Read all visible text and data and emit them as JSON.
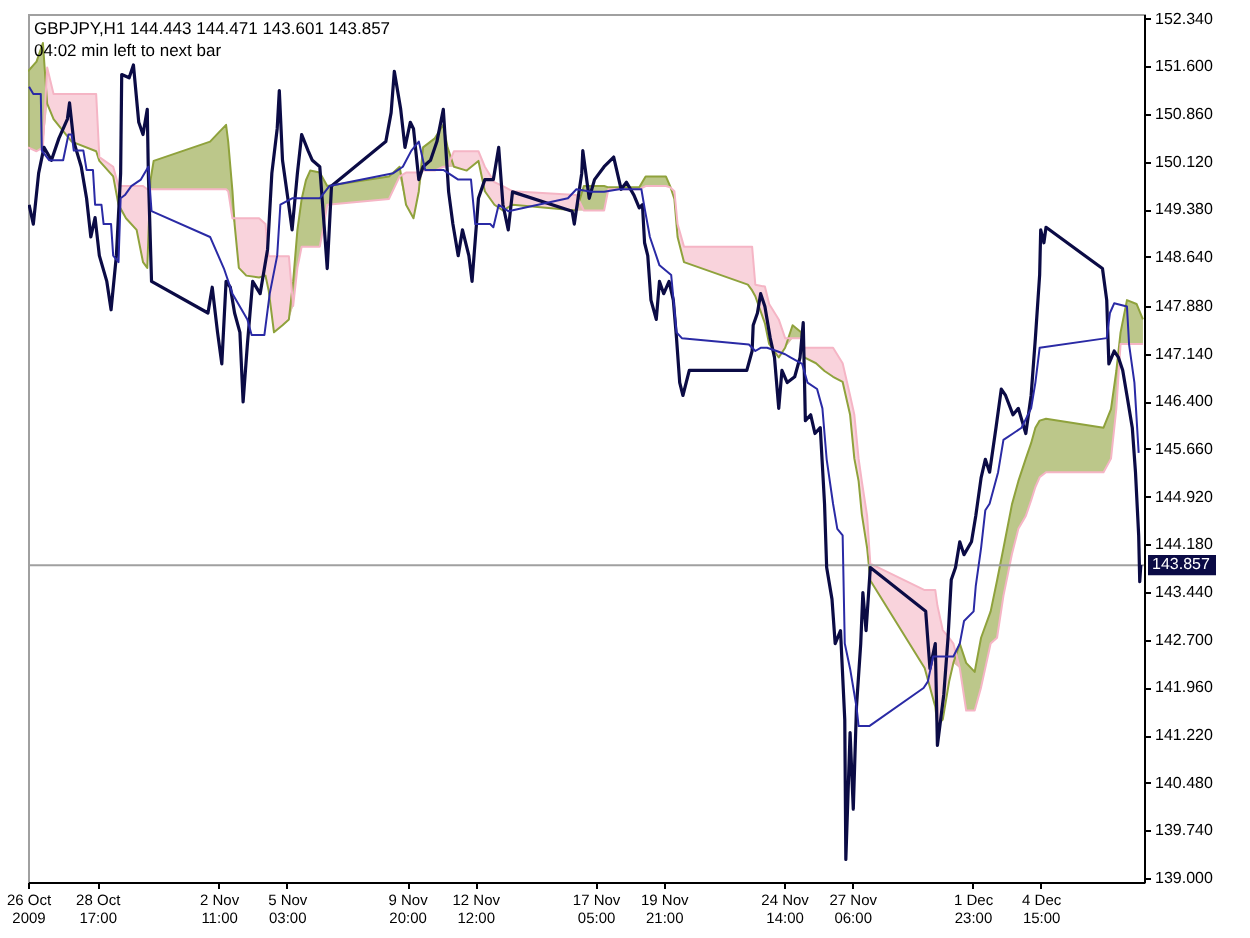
{
  "chart_data": {
    "type": "line",
    "title": "GBPJPY,H1  144.443 144.471 143.601 143.857",
    "subtitle": "04:02 min left to next bar",
    "xlim": [
      "2009-10-26T00:00",
      "2009-12-08T16:00"
    ],
    "xticks": [
      {
        "value": "2009-10-26T00:00",
        "label": "26 Oct 2009"
      },
      {
        "value": "2009-10-28T17:00",
        "label": "28 Oct 17:00"
      },
      {
        "value": "2009-11-02T11:00",
        "label": "2 Nov 11:00"
      },
      {
        "value": "2009-11-05T03:00",
        "label": "5 Nov 03:00"
      },
      {
        "value": "2009-11-09T20:00",
        "label": "9 Nov 20:00"
      },
      {
        "value": "2009-11-12T12:00",
        "label": "12 Nov 12:00"
      },
      {
        "value": "2009-11-17T05:00",
        "label": "17 Nov 05:00"
      },
      {
        "value": "2009-11-19T21:00",
        "label": "19 Nov 21:00"
      },
      {
        "value": "2009-11-24T14:00",
        "label": "24 Nov 14:00"
      },
      {
        "value": "2009-11-27T06:00",
        "label": "27 Nov 06:00"
      },
      {
        "value": "2009-12-01T23:00",
        "label": "1 Dec 23:00"
      },
      {
        "value": "2009-12-04T15:00",
        "label": "4 Dec 15:00"
      }
    ],
    "ylim": [
      138.94,
      152.41
    ],
    "yticks": [
      {
        "value": 152.34,
        "label": "152.340"
      },
      {
        "value": 151.6,
        "label": "151.600"
      },
      {
        "value": 150.86,
        "label": "150.860"
      },
      {
        "value": 150.12,
        "label": "150.120"
      },
      {
        "value": 149.38,
        "label": "149.380"
      },
      {
        "value": 148.64,
        "label": "148.640"
      },
      {
        "value": 147.88,
        "label": "147.880"
      },
      {
        "value": 147.14,
        "label": "147.140"
      },
      {
        "value": 146.4,
        "label": "146.400"
      },
      {
        "value": 145.66,
        "label": "145.660"
      },
      {
        "value": 144.92,
        "label": "144.920"
      },
      {
        "value": 144.18,
        "label": "144.180"
      },
      {
        "value": 143.44,
        "label": "143.440"
      },
      {
        "value": 142.7,
        "label": "142.700"
      },
      {
        "value": 141.96,
        "label": "141.960"
      },
      {
        "value": 141.22,
        "label": "141.220"
      },
      {
        "value": 140.48,
        "label": "140.480"
      },
      {
        "value": 139.74,
        "label": "139.740"
      },
      {
        "value": 139.0,
        "label": "139.000"
      }
    ],
    "ref_lines": [
      {
        "axis": "y",
        "value": 143.857,
        "label": "143.857",
        "color": "#a0a0a0"
      }
    ],
    "x": [
      "2009-10-26T00:00",
      "2009-10-26T08:00",
      "2009-10-26T14:00",
      "2009-10-26T18:00",
      "2009-10-27T00:00",
      "2009-10-27T17:00",
      "2009-10-28T16:00",
      "2009-10-28T19:00",
      "2009-10-29T08:00",
      "2009-10-29T13:00",
      "2009-10-29T20:00",
      "2009-10-30T06:00",
      "2009-10-30T12:00",
      "2009-10-30T16:00",
      "2009-10-30T19:00",
      "2009-10-30T22:00",
      "2009-11-02T03:00",
      "2009-11-02T11:00",
      "2009-11-02T18:00",
      "2009-11-02T20:00",
      "2009-11-03T00:00",
      "2009-11-03T02:00",
      "2009-11-03T06:00",
      "2009-11-03T13:00",
      "2009-11-04T01:00",
      "2009-11-04T07:00",
      "2009-11-04T10:00",
      "2009-11-04T15:00",
      "2009-11-04T23:00",
      "2009-11-05T05:00",
      "2009-11-05T09:00",
      "2009-11-05T13:00",
      "2009-11-05T17:00",
      "2009-11-05T21:00",
      "2009-11-06T01:00",
      "2009-11-06T10:00",
      "2009-11-06T14:00",
      "2009-11-06T17:00",
      "2009-11-09T03:00",
      "2009-11-09T13:00",
      "2009-11-09T19:00",
      "2009-11-10T02:00",
      "2009-11-10T07:00",
      "2009-11-10T11:00",
      "2009-11-10T22:00",
      "2009-11-11T06:00",
      "2009-11-11T10:00",
      "2009-11-11T16:00",
      "2009-11-12T04:00",
      "2009-11-12T15:00",
      "2009-11-12T21:00",
      "2009-11-13T06:00",
      "2009-11-13T14:00",
      "2009-11-13T23:00",
      "2009-11-16T11:00",
      "2009-11-16T18:00",
      "2009-11-17T13:00",
      "2009-11-17T17:00",
      "2009-11-18T22:00",
      "2009-11-19T04:00",
      "2009-11-19T23:00",
      "2009-11-20T03:00",
      "2009-11-20T07:00",
      "2009-11-20T10:00",
      "2009-11-20T16:00",
      "2009-11-23T04:00",
      "2009-11-23T08:00",
      "2009-11-23T11:00",
      "2009-11-23T20:00",
      "2009-11-24T00:00",
      "2009-11-24T09:00",
      "2009-11-24T15:00",
      "2009-11-24T22:00",
      "2009-11-25T06:00",
      "2009-11-25T09:00",
      "2009-11-25T20:00",
      "2009-11-26T04:00",
      "2009-11-26T12:00",
      "2009-11-26T21:00",
      "2009-11-27T04:00",
      "2009-11-27T08:00",
      "2009-11-27T12:00",
      "2009-11-27T15:00",
      "2009-11-27T20:00",
      "2009-11-27T23:00",
      "2009-11-30T02:00",
      "2009-11-30T12:00",
      "2009-11-30T14:00",
      "2009-11-30T19:00",
      "2009-12-01T01:00",
      "2009-12-01T05:00",
      "2009-12-01T11:00",
      "2009-12-01T17:00",
      "2009-12-02T01:00",
      "2009-12-02T07:00",
      "2009-12-02T16:00",
      "2009-12-02T22:00",
      "2009-12-03T04:00",
      "2009-12-03T12:00",
      "2009-12-03T18:00",
      "2009-12-04T01:00",
      "2009-12-04T06:00",
      "2009-12-04T10:00",
      "2009-12-04T14:00",
      "2009-12-04T20:00",
      "2009-12-07T02:00",
      "2009-12-07T09:00",
      "2009-12-07T14:00",
      "2009-12-07T18:00",
      "2009-12-08T00:00",
      "2009-12-08T09:00",
      "2009-12-08T15:00"
    ],
    "series": [
      {
        "color": "#0b0b45",
        "x": [
          "2009-10-26T01:00",
          "2009-10-26T05:00",
          "2009-10-26T10:00",
          "2009-10-26T15:00",
          "2009-10-26T22:00",
          "2009-10-27T05:00",
          "2009-10-27T13:00",
          "2009-10-27T15:00",
          "2009-10-27T19:00",
          "2009-10-28T02:00",
          "2009-10-28T07:00",
          "2009-10-28T11:00",
          "2009-10-28T15:00",
          "2009-10-28T19:00",
          "2009-10-29T02:00",
          "2009-10-29T06:00",
          "2009-10-29T11:00",
          "2009-10-29T15:00",
          "2009-10-29T16:00",
          "2009-10-29T23:00",
          "2009-10-30T03:00",
          "2009-10-30T08:00",
          "2009-10-30T12:00",
          "2009-10-30T16:00",
          "2009-10-30T17:00",
          "2009-10-30T20:00",
          "2009-11-02T01:00",
          "2009-11-02T05:00",
          "2009-11-02T10:00",
          "2009-11-02T14:00",
          "2009-11-02T18:00",
          "2009-11-02T22:00",
          "2009-11-03T02:00",
          "2009-11-03T07:00",
          "2009-11-03T10:00",
          "2009-11-03T14:00",
          "2009-11-03T19:00",
          "2009-11-04T02:00",
          "2009-11-04T09:00",
          "2009-11-04T13:00",
          "2009-11-04T18:00",
          "2009-11-04T20:00",
          "2009-11-04T23:00",
          "2009-11-05T04:00",
          "2009-11-05T08:00",
          "2009-11-05T13:00",
          "2009-11-05T17:00",
          "2009-11-05T23:00",
          "2009-11-06T03:00",
          "2009-11-06T10:00",
          "2009-11-06T14:00",
          "2009-11-06T17:00",
          "2009-11-06T21:00",
          "2009-11-09T00:00",
          "2009-11-09T05:00",
          "2009-11-09T08:00",
          "2009-11-09T14:00",
          "2009-11-09T18:00",
          "2009-11-09T23:00",
          "2009-11-10T02:00",
          "2009-11-10T07:00",
          "2009-11-10T11:00",
          "2009-11-10T18:00",
          "2009-11-11T00:00",
          "2009-11-11T06:00",
          "2009-11-11T11:00",
          "2009-11-11T15:00",
          "2009-11-11T20:00",
          "2009-11-12T00:00",
          "2009-11-12T06:00",
          "2009-11-12T09:00",
          "2009-11-12T15:00",
          "2009-11-12T21:00",
          "2009-11-13T05:00",
          "2009-11-13T10:00",
          "2009-11-13T14:00",
          "2009-11-13T19:00",
          "2009-11-13T23:00",
          "2009-11-16T07:00",
          "2009-11-16T09:00",
          "2009-11-16T16:00",
          "2009-11-16T17:00",
          "2009-11-16T23:00",
          "2009-11-17T04:00",
          "2009-11-17T13:00",
          "2009-11-17T22:00",
          "2009-11-18T05:00",
          "2009-11-18T10:00",
          "2009-11-18T17:00",
          "2009-11-18T22:00",
          "2009-11-19T01:00",
          "2009-11-19T03:00",
          "2009-11-19T06:00",
          "2009-11-19T09:00",
          "2009-11-19T14:00",
          "2009-11-19T17:00",
          "2009-11-19T21:00",
          "2009-11-20T02:00",
          "2009-11-20T06:00",
          "2009-11-20T09:00",
          "2009-11-20T12:00",
          "2009-11-20T15:00",
          "2009-11-20T21:00",
          "2009-11-23T03:00",
          "2009-11-23T08:00",
          "2009-11-23T09:00",
          "2009-11-23T13:00",
          "2009-11-23T16:00",
          "2009-11-23T20:00",
          "2009-11-24T01:00",
          "2009-11-24T05:00",
          "2009-11-24T09:00",
          "2009-11-24T12:00",
          "2009-11-24T17:00",
          "2009-11-25T00:00",
          "2009-11-25T05:00",
          "2009-11-25T08:00",
          "2009-11-25T10:00",
          "2009-11-25T15:00",
          "2009-11-25T19:00",
          "2009-11-26T00:00",
          "2009-11-26T04:00",
          "2009-11-26T06:00",
          "2009-11-26T11:00",
          "2009-11-26T14:00",
          "2009-11-26T19:00",
          "2009-11-26T23:00",
          "2009-11-27T00:00",
          "2009-11-27T04:00",
          "2009-11-27T07:00",
          "2009-11-27T10:00",
          "2009-11-27T14:00",
          "2009-11-27T16:00",
          "2009-11-27T19:00",
          "2009-11-27T23:00",
          "2009-11-30T03:00",
          "2009-11-30T07:00",
          "2009-11-30T12:00",
          "2009-11-30T14:00",
          "2009-11-30T20:00",
          "2009-12-01T00:00",
          "2009-12-01T03:00",
          "2009-12-01T07:00",
          "2009-12-01T11:00",
          "2009-12-01T15:00",
          "2009-12-01T22:00",
          "2009-12-02T02:00",
          "2009-12-02T07:00",
          "2009-12-02T11:00",
          "2009-12-02T15:00",
          "2009-12-02T21:00",
          "2009-12-03T02:00",
          "2009-12-03T06:00",
          "2009-12-03T13:00",
          "2009-12-03T18:00",
          "2009-12-04T01:00",
          "2009-12-04T06:00",
          "2009-12-04T10:00",
          "2009-12-04T14:00",
          "2009-12-04T15:00",
          "2009-12-04T18:00",
          "2009-12-04T20:00",
          "2009-12-07T01:00",
          "2009-12-07T05:00",
          "2009-12-07T07:00",
          "2009-12-07T12:00",
          "2009-12-07T16:00",
          "2009-12-07T20:00",
          "2009-12-08T00:00",
          "2009-12-08T05:00",
          "2009-12-08T08:00",
          "2009-12-08T11:00",
          "2009-12-08T12:00",
          "2009-12-08T13:00"
        ],
        "values": [
          149.45,
          149.15,
          149.94,
          150.34,
          150.14,
          150.48,
          150.78,
          151.03,
          150.43,
          150.04,
          149.55,
          148.95,
          149.25,
          148.66,
          148.26,
          147.82,
          148.66,
          149.94,
          151.47,
          151.42,
          151.62,
          150.73,
          150.54,
          150.93,
          149.94,
          148.26,
          147.77,
          148.17,
          147.47,
          146.98,
          148.26,
          148.17,
          147.77,
          147.47,
          146.39,
          147.28,
          148.26,
          148.07,
          148.76,
          149.94,
          150.63,
          151.22,
          150.14,
          149.55,
          149.06,
          149.94,
          150.54,
          150.29,
          150.14,
          150.04,
          149.15,
          148.46,
          149.74,
          150.43,
          150.88,
          151.52,
          150.93,
          150.34,
          150.73,
          150.63,
          149.84,
          150.04,
          150.14,
          150.43,
          150.93,
          149.65,
          149.15,
          148.66,
          149.06,
          148.66,
          148.26,
          149.55,
          149.84,
          149.84,
          150.34,
          149.45,
          149.06,
          149.65,
          149.35,
          149.15,
          149.94,
          150.29,
          149.55,
          149.84,
          150.04,
          150.19,
          149.69,
          149.8,
          149.6,
          149.4,
          149.45,
          148.86,
          148.66,
          147.97,
          147.67,
          148.26,
          148.07,
          148.26,
          147.97,
          147.38,
          146.69,
          146.49,
          146.88,
          146.88,
          147.18,
          147.58,
          147.77,
          148.07,
          147.87,
          147.38,
          147.08,
          146.29,
          146.88,
          146.69,
          146.78,
          147.08,
          147.62,
          146.1,
          146.19,
          145.9,
          145.99,
          144.81,
          143.82,
          143.33,
          142.64,
          142.84,
          141.46,
          139.29,
          141.26,
          140.07,
          141.66,
          142.64,
          143.43,
          142.84,
          143.82,
          143.14,
          142.25,
          142.64,
          141.06,
          141.85,
          142.74,
          143.63,
          143.82,
          144.22,
          144.02,
          144.22,
          144.62,
          145.21,
          145.5,
          145.3,
          145.99,
          146.59,
          146.49,
          146.19,
          146.29,
          145.9,
          146.49,
          147.38,
          148.36,
          149.06,
          148.86,
          149.1,
          148.46,
          147.97,
          146.98,
          147.18,
          147.08,
          146.88,
          146.49,
          145.99,
          145.3,
          144.32,
          143.6,
          143.86
        ]
      },
      {
        "color": "#2a2aa5",
        "x": [
          "2009-10-26T01:00",
          "2009-10-26T05:00",
          "2009-10-26T12:00",
          "2009-10-26T13:00",
          "2009-10-26T20:00",
          "2009-10-27T09:00",
          "2009-10-27T14:00",
          "2009-10-27T17:00",
          "2009-10-27T19:00",
          "2009-10-28T04:00",
          "2009-10-28T07:00",
          "2009-10-28T13:00",
          "2009-10-28T15:00",
          "2009-10-28T21:00",
          "2009-10-28T23:00",
          "2009-10-29T06:00",
          "2009-10-29T08:00",
          "2009-10-29T13:00",
          "2009-10-29T15:00",
          "2009-10-29T19:00",
          "2009-10-30T01:00",
          "2009-10-30T10:00",
          "2009-10-30T17:00",
          "2009-10-30T20:00",
          "2009-11-02T03:00",
          "2009-11-02T16:00",
          "2009-11-03T00:00",
          "2009-11-03T14:00",
          "2009-11-03T18:00",
          "2009-11-04T06:00",
          "2009-11-04T11:00",
          "2009-11-04T18:00",
          "2009-11-04T21:00",
          "2009-11-05T08:00",
          "2009-11-06T10:00",
          "2009-11-06T19:00",
          "2009-11-09T07:00",
          "2009-11-09T16:00",
          "2009-11-10T00:00",
          "2009-11-10T07:00",
          "2009-11-10T13:00",
          "2009-11-11T06:00",
          "2009-11-11T20:00",
          "2009-11-12T08:00",
          "2009-11-12T12:00",
          "2009-11-13T02:00",
          "2009-11-13T05:00",
          "2009-11-13T10:00",
          "2009-11-13T19:00",
          "2009-11-16T03:00",
          "2009-11-16T11:00",
          "2009-11-17T01:00",
          "2009-11-17T13:00",
          "2009-11-18T03:00",
          "2009-11-19T00:00",
          "2009-11-19T03:00",
          "2009-11-19T08:00",
          "2009-11-19T17:00",
          "2009-11-20T04:00",
          "2009-11-20T09:00",
          "2009-11-20T14:00",
          "2009-11-23T05:00",
          "2009-11-23T11:00",
          "2009-11-23T16:00",
          "2009-11-23T22:00",
          "2009-11-24T07:00",
          "2009-11-24T15:00",
          "2009-11-24T20:00",
          "2009-11-25T07:00",
          "2009-11-25T12:00",
          "2009-11-25T21:00",
          "2009-11-26T02:00",
          "2009-11-26T06:00",
          "2009-11-26T12:00",
          "2009-11-26T16:00",
          "2009-11-26T21:00",
          "2009-11-26T23:00",
          "2009-11-27T04:00",
          "2009-11-27T10:00",
          "2009-11-27T12:00",
          "2009-11-27T22:00",
          "2009-11-30T01:00",
          "2009-11-30T05:00",
          "2009-11-30T10:00",
          "2009-12-01T05:00",
          "2009-12-01T11:00",
          "2009-12-01T15:00",
          "2009-12-02T00:00",
          "2009-12-02T02:00",
          "2009-12-02T07:00",
          "2009-12-02T11:00",
          "2009-12-02T15:00",
          "2009-12-02T23:00",
          "2009-12-03T04:00",
          "2009-12-03T13:00",
          "2009-12-03T21:00",
          "2009-12-04T06:00",
          "2009-12-04T10:00",
          "2009-12-04T14:00",
          "2009-12-07T05:00",
          "2009-12-07T08:00",
          "2009-12-07T12:00",
          "2009-12-08T00:00",
          "2009-12-08T02:00",
          "2009-12-08T07:00",
          "2009-12-08T11:00"
        ],
        "values": [
          151.28,
          151.17,
          151.17,
          150.29,
          150.14,
          150.14,
          150.54,
          150.54,
          150.29,
          150.29,
          149.99,
          149.99,
          149.45,
          149.45,
          149.15,
          149.15,
          148.66,
          148.56,
          149.55,
          149.6,
          149.74,
          149.84,
          150.04,
          149.35,
          148.95,
          148.46,
          148.07,
          147.67,
          147.43,
          147.43,
          148.07,
          148.66,
          149.45,
          149.55,
          149.55,
          149.74,
          149.94,
          150.04,
          150.29,
          150.43,
          149.99,
          149.99,
          149.84,
          149.84,
          149.15,
          149.15,
          149.1,
          149.45,
          149.35,
          149.55,
          149.69,
          149.65,
          149.65,
          149.69,
          149.69,
          149.4,
          148.95,
          148.51,
          148.36,
          147.47,
          147.38,
          147.28,
          147.18,
          147.23,
          147.23,
          147.18,
          147.13,
          147.08,
          146.98,
          146.69,
          146.59,
          146.29,
          145.5,
          144.81,
          144.42,
          144.32,
          142.64,
          142.25,
          141.66,
          141.36,
          141.36,
          141.95,
          142.05,
          142.44,
          142.44,
          142.64,
          142.99,
          143.14,
          143.53,
          144.12,
          144.71,
          144.81,
          145.3,
          145.8,
          145.9,
          145.99,
          146.29,
          146.69,
          147.23,
          147.38,
          147.77,
          147.92,
          147.87,
          147.28,
          146.69,
          145.6
        ]
      },
      {
        "type": "area",
        "color": "#8fa23c",
        "values": [
          151.52,
          151.67,
          151.96,
          151.02,
          150.78,
          150.43,
          150.28,
          150.13,
          149.89,
          149.45,
          149.24,
          149.06,
          148.56,
          148.47,
          149.83,
          150.13,
          150.43,
          150.57,
          150.69,
          150.43,
          149.66,
          149.15,
          148.47,
          148.35,
          148.32,
          148.35,
          148.12,
          147.47,
          147.58,
          147.67,
          148.26,
          149.06,
          149.54,
          149.83,
          149.98,
          149.95,
          149.83,
          149.74,
          149.89,
          150.04,
          149.45,
          149.24,
          149.66,
          150.34,
          150.48,
          150.69,
          150.34,
          150.04,
          149.98,
          150.13,
          149.66,
          149.45,
          149.36,
          149.45,
          149.36,
          149.74,
          149.74,
          149.72,
          149.72,
          149.89,
          149.89,
          149.74,
          149.54,
          148.95,
          148.56,
          148.21,
          148.12,
          148.03,
          147.61,
          147.29,
          147.08,
          147.23,
          147.58,
          147.47,
          147.08,
          146.99,
          146.87,
          146.78,
          146.7,
          146.19,
          145.51,
          145.16,
          144.65,
          144.12,
          143.62,
          142.26,
          141.66,
          141.37,
          141.46,
          142.05,
          142.34,
          142.64,
          142.34,
          142.2,
          142.73,
          143.14,
          143.62,
          144.12,
          144.8,
          145.16,
          145.51,
          145.75,
          145.99,
          146.1,
          146.13,
          145.99,
          146.28,
          146.87,
          147.47,
          147.97,
          147.91,
          147.67
        ]
      },
      {
        "type": "area",
        "color": "#f5b5c5",
        "values": [
          150.34,
          150.28,
          150.34,
          151.58,
          151.17,
          151.17,
          151.17,
          150.19,
          150.04,
          149.74,
          149.74,
          149.74,
          149.74,
          149.69,
          149.69,
          149.69,
          149.69,
          149.69,
          149.69,
          149.66,
          149.24,
          149.24,
          149.24,
          149.24,
          149.24,
          149.15,
          148.65,
          148.65,
          148.65,
          148.65,
          147.88,
          148.47,
          148.8,
          148.8,
          148.8,
          148.8,
          149.15,
          149.45,
          149.54,
          149.89,
          149.95,
          149.95,
          149.95,
          149.98,
          149.98,
          150.04,
          150.04,
          150.28,
          150.28,
          150.28,
          150.04,
          149.8,
          149.74,
          149.66,
          149.6,
          149.36,
          149.36,
          149.69,
          149.69,
          149.74,
          149.74,
          149.72,
          149.66,
          149.15,
          148.8,
          148.8,
          148.8,
          148.21,
          148.18,
          147.91,
          147.67,
          147.38,
          147.38,
          147.38,
          147.23,
          147.23,
          147.23,
          147.23,
          146.99,
          146.49,
          146.19,
          145.51,
          145.16,
          144.62,
          143.88,
          143.47,
          143.47,
          143.23,
          142.85,
          142.73,
          142.64,
          142.26,
          141.6,
          141.6,
          141.96,
          142.64,
          142.73,
          143.38,
          144.03,
          144.42,
          144.62,
          144.86,
          145.07,
          145.22,
          145.3,
          145.3,
          145.51,
          146.28,
          147.29,
          147.29,
          147.29,
          147.29
        ]
      }
    ]
  }
}
